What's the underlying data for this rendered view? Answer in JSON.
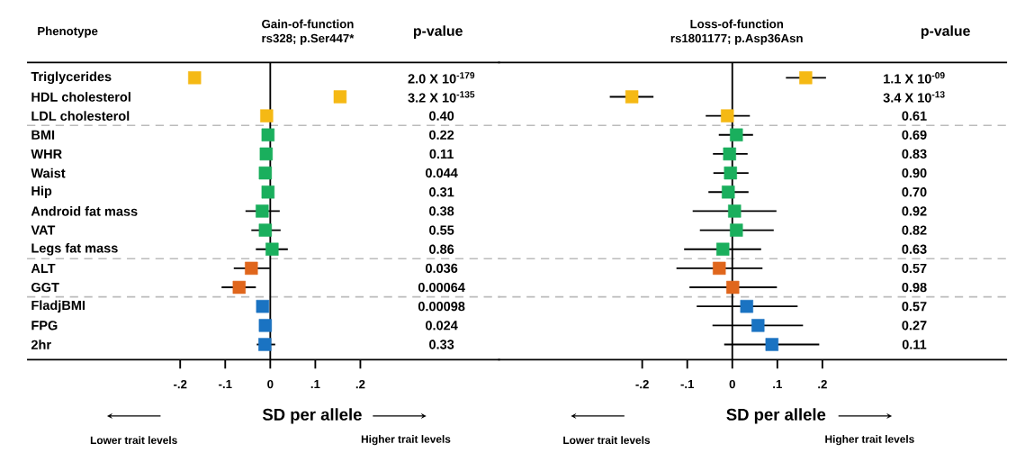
{
  "chart_data": [
    {
      "type": "scatter",
      "orientation": "horizontal",
      "marker": "square",
      "title": "Gain-of-function",
      "subtitle": "rs328; p.Ser447*",
      "xlabel": "SD per allele",
      "categories": [
        "Triglycerides",
        "HDL cholesterol",
        "LDL cholesterol",
        "BMI",
        "WHR",
        "Waist",
        "Hip",
        "Android fat mass",
        "VAT",
        "Legs fat mass",
        "ALT",
        "GGT",
        "FladjBMI",
        "FPG",
        "2hr"
      ],
      "values": [
        -0.168,
        0.155,
        -0.008,
        -0.005,
        -0.009,
        -0.011,
        -0.005,
        -0.018,
        -0.011,
        0.004,
        -0.042,
        -0.069,
        -0.017,
        -0.011,
        -0.012
      ],
      "errors": [
        null,
        null,
        null,
        null,
        null,
        null,
        null,
        [
          -0.055,
          0.021
        ],
        [
          -0.042,
          0.023
        ],
        [
          -0.032,
          0.039
        ],
        [
          -0.081,
          -0.001
        ],
        [
          -0.108,
          -0.032
        ],
        null,
        null,
        [
          -0.03,
          0.011
        ]
      ],
      "colors": [
        "#f5b914",
        "#f5b914",
        "#f5b914",
        "#1aaf5d",
        "#1aaf5d",
        "#1aaf5d",
        "#1aaf5d",
        "#1aaf5d",
        "#1aaf5d",
        "#1aaf5d",
        "#e0661c",
        "#e0661c",
        "#1a73c2",
        "#1a73c2",
        "#1a73c2"
      ],
      "xlim": [
        -0.54,
        0.51
      ],
      "xticks": [
        {
          "value": -0.2,
          "label": "-.2"
        },
        {
          "value": -0.1,
          "label": "-.1"
        },
        0,
        {
          "value": 0.1,
          "label": ".1"
        },
        {
          "value": 0.2,
          "label": ".2"
        }
      ],
      "ref_lines": [
        {
          "axis": "x",
          "value": 0,
          "color": "#000000",
          "line_style": "solid"
        }
      ],
      "annotations": [
        "2.0 X 10$^{-179}$",
        "3.2 X 10$^{-135}$",
        "0.40",
        "0.22",
        "0.11",
        "0.044",
        "0.31",
        "0.38",
        "0.55",
        "0.86",
        "0.036",
        "0.00064",
        "0.00098",
        "0.024",
        "0.33",
        "p-value",
        "Lower trait levels",
        "Higher trait levels",
        "Phenotype"
      ]
    },
    {
      "type": "scatter",
      "orientation": "horizontal",
      "marker": "square",
      "title": "Loss-of-function",
      "subtitle": "rs1801177; p.Asp36Asn",
      "xlabel": "SD per allele",
      "categories": [
        null,
        null,
        null,
        null,
        null,
        null,
        null,
        null,
        null,
        null,
        null,
        null,
        null,
        null,
        null
      ],
      "values": [
        0.163,
        -0.223,
        -0.011,
        0.009,
        -0.006,
        -0.004,
        -0.009,
        0.005,
        0.009,
        -0.021,
        -0.029,
        0.001,
        0.032,
        0.057,
        0.088
      ],
      "errors": [
        [
          0.119,
          0.208
        ],
        [
          -0.272,
          -0.175
        ],
        [
          -0.059,
          0.039
        ],
        [
          -0.03,
          0.046
        ],
        [
          -0.043,
          0.034
        ],
        [
          -0.042,
          0.036
        ],
        [
          -0.053,
          0.036
        ],
        [
          -0.088,
          0.098
        ],
        [
          -0.072,
          0.092
        ],
        [
          -0.107,
          0.064
        ],
        [
          -0.124,
          0.067
        ],
        [
          -0.095,
          0.099
        ],
        [
          -0.079,
          0.145
        ],
        [
          -0.044,
          0.157
        ],
        [
          -0.018,
          0.193
        ]
      ],
      "colors": [
        "#f5b914",
        "#f5b914",
        "#f5b914",
        "#1aaf5d",
        "#1aaf5d",
        "#1aaf5d",
        "#1aaf5d",
        "#1aaf5d",
        "#1aaf5d",
        "#1aaf5d",
        "#e0661c",
        "#e0661c",
        "#1a73c2",
        "#1a73c2",
        "#1a73c2"
      ],
      "xlim": [
        -0.52,
        0.61
      ],
      "xticks": [
        {
          "value": -0.2,
          "label": "-.2"
        },
        {
          "value": -0.1,
          "label": "-.1"
        },
        0,
        {
          "value": 0.1,
          "label": ".1"
        },
        {
          "value": 0.2,
          "label": ".2"
        }
      ],
      "ref_lines": [
        {
          "axis": "x",
          "value": 0,
          "color": "#000000",
          "line_style": "solid"
        }
      ],
      "annotations": [
        "1.1 X 10$^{-09}$",
        "3.4 X 10$^{-13}$",
        "0.61",
        "0.69",
        "0.83",
        "0.90",
        "0.70",
        "0.92",
        "0.82",
        "0.63",
        "0.57",
        "0.98",
        "0.57",
        "0.27",
        "0.11",
        "p-value",
        "Lower trait levels",
        "Higher trait levels"
      ]
    }
  ]
}
